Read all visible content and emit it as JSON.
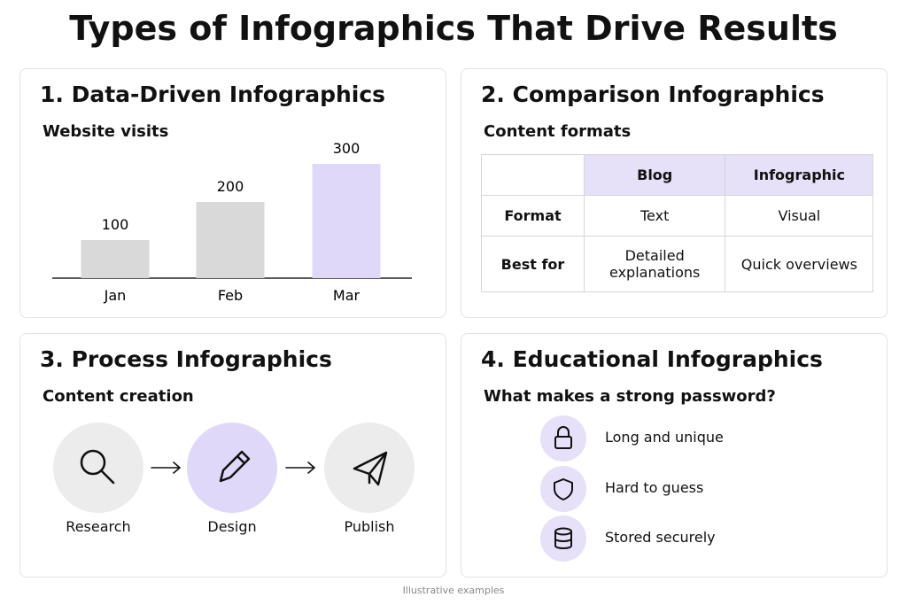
{
  "title": "Types of Infographics That Drive Results",
  "panels": [
    {
      "heading": "1. Data-Driven Infographics",
      "subtitle": "Website visits",
      "chart": {
        "categories": [
          "Jan",
          "Feb",
          "Mar"
        ],
        "values": [
          100,
          200,
          300
        ],
        "colors": [
          "#d9d9d9",
          "#d9d9d9",
          "#e0d8f8"
        ]
      }
    },
    {
      "heading": "2. Comparison Infographics",
      "subtitle": "Content formats",
      "table": {
        "header": [
          "Blog",
          "Infographic"
        ],
        "rows": [
          {
            "label": "Format",
            "cells": [
              "Text",
              "Visual"
            ]
          },
          {
            "label": "Best for",
            "cells": [
              "Detailed explanations",
              "Quick overviews"
            ]
          }
        ]
      }
    },
    {
      "heading": "3. Process Infographics",
      "subtitle": "Content creation",
      "steps": [
        "Research",
        "Design",
        "Publish"
      ]
    },
    {
      "heading": "4. Educational Infographics",
      "subtitle": "What makes a strong password?",
      "items": [
        "Long and unique",
        "Hard to guess",
        "Stored securely"
      ]
    }
  ],
  "footnote": "Illustrative examples"
}
